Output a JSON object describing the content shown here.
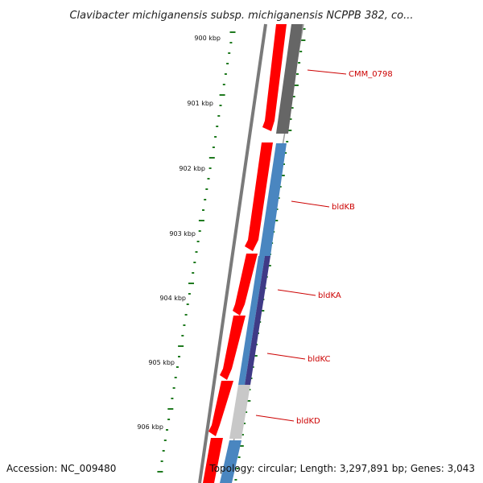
{
  "title": "Clavibacter michiganensis subsp. michiganensis NCPPB 382, co...",
  "colors": {
    "forward_cds": "#ff0000",
    "reverse_gene_grey": "#666666",
    "reverse_gene_blue": "#4a86c0",
    "reverse_gene_purple": "#3f3a86",
    "reverse_gene_lightgrey": "#c8c8c8",
    "backbone": "#888888",
    "gc_ticks": "#1f7a1f",
    "label": "#cc0000"
  },
  "scale_labels": [
    "900 kbp",
    "901 kbp",
    "902 kbp",
    "903 kbp",
    "904 kbp",
    "905 kbp",
    "906 kbp"
  ],
  "genes": [
    {
      "name": "CMM_0798",
      "track": "reverse",
      "color": "grey"
    },
    {
      "name": "bldKB",
      "track": "reverse",
      "color": "blue"
    },
    {
      "name": "bldKA",
      "track": "reverse",
      "color": "purple"
    },
    {
      "name": "bldKC",
      "track": "reverse",
      "color": "purple"
    },
    {
      "name": "bldKD",
      "track": "reverse",
      "color": "lightgrey"
    }
  ],
  "footer": {
    "accession": "Accession: NC_009480",
    "summary": "Topology: circular; Length: 3,297,891 bp; Genes: 3,043"
  }
}
